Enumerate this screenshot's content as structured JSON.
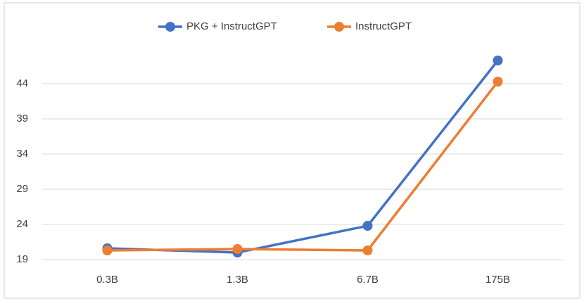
{
  "chart_data": {
    "type": "line",
    "categories": [
      "0.3B",
      "1.3B",
      "6.7B",
      "175B"
    ],
    "series": [
      {
        "name": "PKG + InstructGPT",
        "color": "#4472c4",
        "values": [
          20.6,
          20.0,
          23.8,
          47.3
        ]
      },
      {
        "name": "InstructGPT",
        "color": "#ed7d31",
        "values": [
          20.3,
          20.5,
          20.3,
          44.3
        ]
      }
    ],
    "ylim": [
      19,
      49
    ],
    "yticks": [
      19,
      24,
      29,
      34,
      39,
      44
    ],
    "grid": true,
    "legend": "top"
  }
}
